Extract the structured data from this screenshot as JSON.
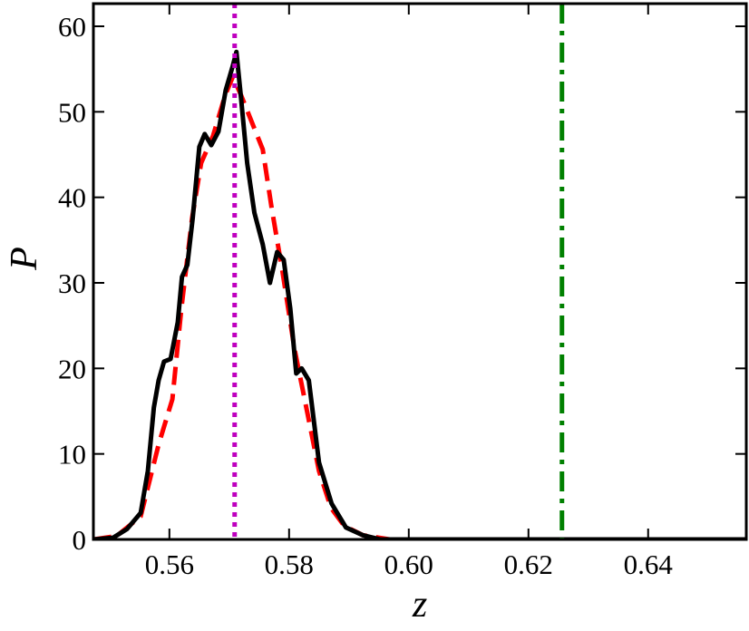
{
  "chart_data": {
    "type": "line",
    "x_label": "z",
    "y_label": "P",
    "xlim": [
      0.5473,
      0.6564
    ],
    "ylim": [
      0,
      62.65
    ],
    "xticks": [
      0.56,
      0.58,
      {
        "value": 0.6,
        "label": "0.60"
      },
      0.62,
      0.64
    ],
    "yticks": [
      0,
      10,
      20,
      30,
      40,
      50,
      60
    ],
    "series": [
      {
        "color": "#ff0000",
        "dash": "dashed",
        "x": [
          0.5473,
          0.5512,
          0.5552,
          0.5582,
          0.5605,
          0.562,
          0.5638,
          0.5653,
          0.5673,
          0.5693,
          0.5706,
          0.572,
          0.5744,
          0.5756,
          0.5771,
          0.5789,
          0.5809,
          0.5832,
          0.585,
          0.587,
          0.5892,
          0.5923,
          0.5968,
          0.6564
        ],
        "values": [
          0,
          0.4,
          2.7,
          11.1,
          16.4,
          27.0,
          37.6,
          44.0,
          47.2,
          51.9,
          54.1,
          51.9,
          47.7,
          45.6,
          38.7,
          31.3,
          22.3,
          14.3,
          8.0,
          3.7,
          1.6,
          0.5,
          0,
          0
        ]
      },
      {
        "color": "#000000",
        "dash": "solid",
        "x": [
          0.5473,
          0.5506,
          0.5529,
          0.5552,
          0.5564,
          0.5574,
          0.5582,
          0.5591,
          0.5602,
          0.5614,
          0.5621,
          0.563,
          0.5639,
          0.565,
          0.5659,
          0.567,
          0.5682,
          0.5694,
          0.5706,
          0.5712,
          0.572,
          0.573,
          0.5742,
          0.5756,
          0.5768,
          0.578,
          0.5791,
          0.5802,
          0.5812,
          0.5821,
          0.5833,
          0.585,
          0.5871,
          0.5895,
          0.5923,
          0.5953,
          0.6564
        ],
        "values": [
          0,
          0.2,
          1.2,
          3.1,
          8.0,
          15.4,
          18.6,
          20.8,
          21.1,
          25.4,
          30.7,
          32.1,
          37.6,
          45.9,
          47.4,
          46.1,
          47.7,
          52.5,
          55.4,
          57.0,
          51.4,
          44.0,
          38.2,
          34.5,
          30.0,
          33.6,
          32.7,
          27.0,
          19.4,
          20.0,
          18.6,
          9.0,
          4.2,
          1.4,
          0.5,
          0,
          0
        ]
      }
    ],
    "vlines": [
      {
        "x": 0.5709,
        "color": "#bf00bf",
        "dash": "dotted"
      },
      {
        "x": 0.6256,
        "color": "#008000",
        "dash": "dashdot"
      }
    ]
  }
}
